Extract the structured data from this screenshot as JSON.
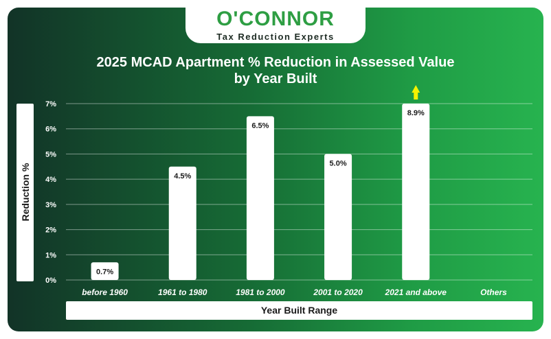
{
  "logo": {
    "name": "O'CONNOR",
    "tagline": "Tax Reduction Experts"
  },
  "colors": {
    "brand_green": "#2e9e43",
    "bar": "#ffffff",
    "arrow": "#f5f200"
  },
  "chart_data": {
    "type": "bar",
    "title_line1": "2025 MCAD Apartment % Reduction in Assessed Value",
    "title_line2": "by Year Built",
    "xlabel": "Year Built Range",
    "ylabel": "Reduction %",
    "ylim": [
      0,
      7
    ],
    "yticks": [
      "0%",
      "1%",
      "2%",
      "3%",
      "4%",
      "5%",
      "6%",
      "7%"
    ],
    "grid": true,
    "categories": [
      "before 1960",
      "1961 to 1980",
      "1981 to 2000",
      "2001 to 2020",
      "2021 and above",
      "Others"
    ],
    "values": [
      0.7,
      4.5,
      6.5,
      5.0,
      8.9,
      null
    ],
    "data_labels": [
      "0.7%",
      "4.5%",
      "6.5%",
      "5.0%",
      "8.9%",
      ""
    ],
    "clipped_above_axis": [
      false,
      false,
      false,
      false,
      true,
      false
    ]
  }
}
